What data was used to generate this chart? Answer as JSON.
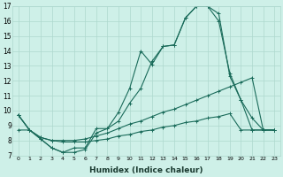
{
  "xlabel": "Humidex (Indice chaleur)",
  "bg_color": "#cef0e8",
  "grid_color": "#aed8ce",
  "line_color": "#1a6b5a",
  "xlim": [
    -0.5,
    23.5
  ],
  "ylim": [
    7,
    17
  ],
  "xticks": [
    0,
    1,
    2,
    3,
    4,
    5,
    6,
    7,
    8,
    9,
    10,
    11,
    12,
    13,
    14,
    15,
    16,
    17,
    18,
    19,
    20,
    21,
    22,
    23
  ],
  "yticks": [
    7,
    8,
    9,
    10,
    11,
    12,
    13,
    14,
    15,
    16,
    17
  ],
  "series1_x": [
    0,
    1,
    2,
    3,
    4,
    5,
    6,
    7,
    8,
    9,
    10,
    11,
    12,
    13,
    14,
    15,
    16,
    17,
    18,
    19,
    20,
    21,
    22,
    23
  ],
  "series1_y": [
    9.7,
    8.7,
    8.1,
    7.5,
    7.2,
    7.2,
    7.4,
    8.5,
    8.8,
    9.9,
    11.5,
    14.0,
    13.1,
    14.3,
    14.4,
    16.2,
    17.0,
    17.0,
    16.5,
    12.3,
    10.7,
    9.5,
    8.7,
    8.7
  ],
  "series2_x": [
    0,
    1,
    2,
    3,
    4,
    5,
    6,
    7,
    8,
    9,
    10,
    11,
    12,
    13,
    14,
    15,
    16,
    17,
    18,
    19,
    20,
    21,
    22,
    23
  ],
  "series2_y": [
    9.7,
    8.7,
    8.1,
    7.5,
    7.2,
    7.5,
    7.5,
    8.8,
    8.8,
    9.3,
    10.5,
    11.5,
    13.3,
    14.3,
    14.4,
    16.2,
    17.0,
    17.0,
    16.0,
    12.5,
    10.7,
    8.7,
    8.7,
    8.7
  ],
  "series3_x": [
    0,
    1,
    2,
    3,
    4,
    5,
    6,
    7,
    8,
    9,
    10,
    11,
    12,
    13,
    14,
    15,
    16,
    17,
    18,
    19,
    20,
    21,
    22,
    23
  ],
  "series3_y": [
    9.7,
    8.7,
    8.2,
    8.0,
    8.0,
    8.0,
    8.1,
    8.3,
    8.5,
    8.8,
    9.1,
    9.3,
    9.6,
    9.9,
    10.1,
    10.4,
    10.7,
    11.0,
    11.3,
    11.6,
    11.9,
    12.2,
    8.7,
    8.7
  ],
  "series4_x": [
    0,
    1,
    2,
    3,
    4,
    5,
    6,
    7,
    8,
    9,
    10,
    11,
    12,
    13,
    14,
    15,
    16,
    17,
    18,
    19,
    20,
    21,
    22,
    23
  ],
  "series4_y": [
    8.7,
    8.7,
    8.2,
    8.0,
    7.9,
    7.9,
    7.9,
    8.0,
    8.1,
    8.3,
    8.4,
    8.6,
    8.7,
    8.9,
    9.0,
    9.2,
    9.3,
    9.5,
    9.6,
    9.8,
    8.7,
    8.7,
    8.7,
    8.7
  ]
}
